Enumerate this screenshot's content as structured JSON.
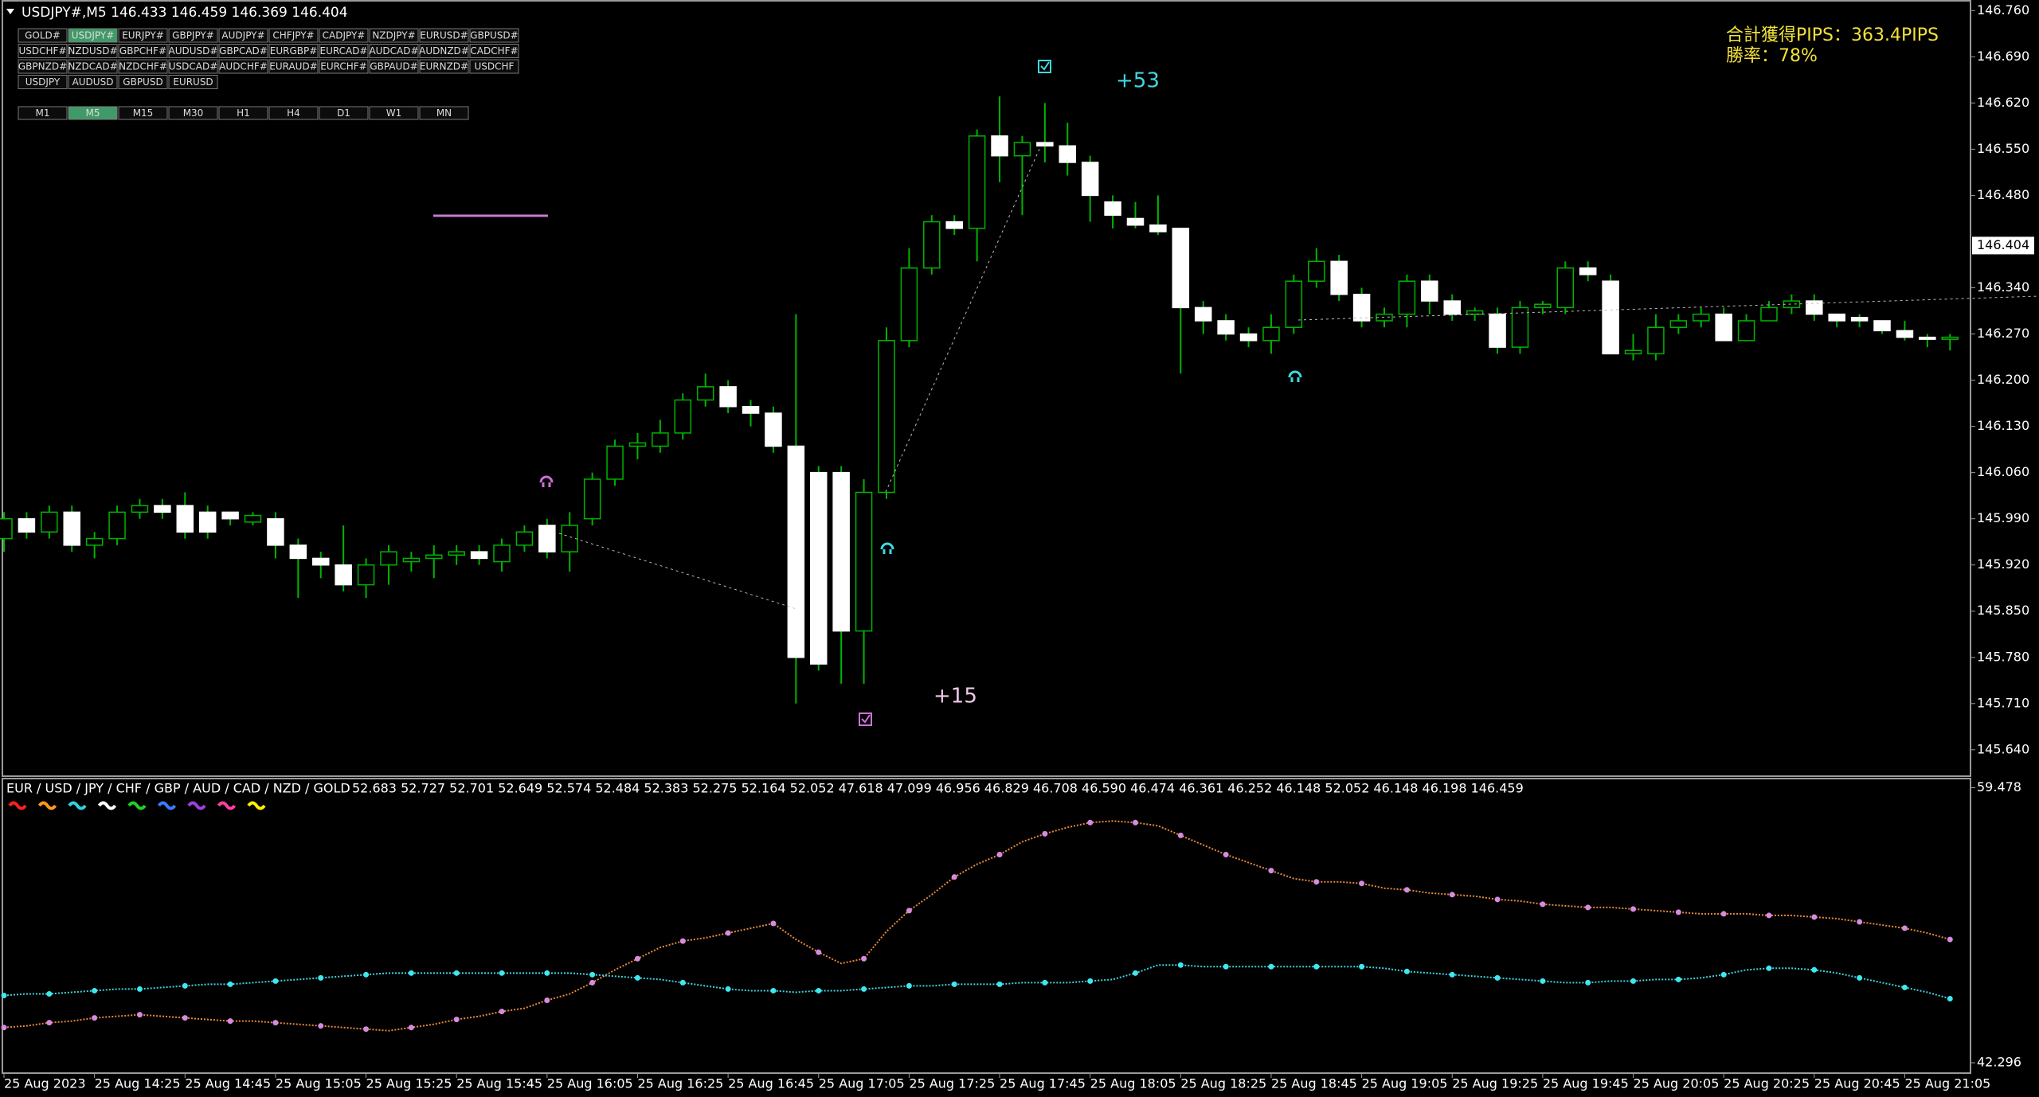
{
  "symbols": {
    "rows": [
      [
        "GOLD#",
        "USDJPY#",
        "EURJPY#",
        "GBPJPY#",
        "AUDJPY#",
        "CHFJPY#",
        "CADJPY#",
        "NZDJPY#",
        "EURUSD#",
        "GBPUSD#"
      ],
      [
        "USDCHF#",
        "NZDUSD#",
        "GBPCHF#",
        "AUDUSD#",
        "GBPCAD#",
        "EURGBP#",
        "EURCAD#",
        "AUDCAD#",
        "AUDNZD#",
        "CADCHF#"
      ],
      [
        "GBPNZD#",
        "NZDCAD#",
        "NZDCHF#",
        "USDCAD#",
        "AUDCHF#",
        "EURAUD#",
        "EURCHF#",
        "GBPAUD#",
        "EURNZD#",
        "USDCHF"
      ],
      [
        "USDJPY",
        "AUDUSD",
        "GBPUSD",
        "EURUSD"
      ]
    ],
    "active_row": 0,
    "active_col": 1
  },
  "timeframes": {
    "items": [
      "M1",
      "M5",
      "M15",
      "M30",
      "H1",
      "H4",
      "D1",
      "W1",
      "MN"
    ],
    "active": 1
  },
  "stats": {
    "total_pips": "合計獲得PIPS：363.4PIPS",
    "win_rate": "勝率：78%"
  },
  "chart_data": [
    {
      "type": "candlestick",
      "title": "USDJPY#,M5  146.433 146.459 146.369 146.404",
      "annotations": [
        "+53",
        "+15"
      ],
      "categories": [
        "25 Aug 2023",
        null,
        null,
        null,
        "25 Aug 14:25",
        null,
        null,
        null,
        "25 Aug 14:45",
        null,
        null,
        null,
        "25 Aug 15:05",
        null,
        null,
        null,
        "25 Aug 15:25",
        null,
        null,
        null,
        "25 Aug 15:45",
        null,
        null,
        null,
        "25 Aug 16:05",
        null,
        null,
        null,
        "25 Aug 16:25",
        null,
        null,
        null,
        "25 Aug 16:45",
        null,
        null,
        null,
        "25 Aug 17:05",
        null,
        null,
        null,
        "25 Aug 17:25",
        null,
        null,
        null,
        "25 Aug 17:45",
        null,
        null,
        null,
        "25 Aug 18:05",
        null,
        null,
        null,
        "25 Aug 18:25",
        null,
        null,
        null,
        "25 Aug 18:45",
        null,
        null,
        null,
        "25 Aug 19:05",
        null,
        null,
        null,
        "25 Aug 19:25",
        null,
        null,
        null,
        "25 Aug 19:45",
        null,
        null,
        null,
        "25 Aug 20:05",
        null,
        null,
        null,
        "25 Aug 20:25",
        null,
        null,
        null,
        "25 Aug 20:45",
        null,
        null,
        null,
        "25 Aug 21:05",
        null,
        null
      ],
      "open": [
        145.96,
        145.99,
        145.97,
        146.0,
        145.95,
        145.96,
        146.0,
        146.01,
        146.01,
        146.0,
        146.0,
        145.985,
        145.99,
        145.95,
        145.93,
        145.92,
        145.89,
        145.92,
        145.925,
        145.93,
        145.935,
        145.94,
        145.925,
        145.95,
        145.98,
        145.94,
        145.99,
        146.05,
        146.1,
        146.1,
        146.12,
        146.17,
        146.19,
        146.16,
        146.15,
        146.1,
        146.06,
        146.06,
        145.82,
        146.03,
        146.26,
        146.37,
        146.44,
        146.43,
        146.57,
        146.54,
        146.56,
        146.555,
        146.53,
        146.47,
        146.445,
        146.435,
        146.43,
        146.31,
        146.29,
        146.27,
        146.26,
        146.28,
        146.35,
        146.38,
        146.33,
        146.29,
        146.3,
        146.35,
        146.32,
        146.3,
        146.3,
        146.25,
        146.31,
        146.31,
        146.37,
        146.35,
        146.24,
        146.24,
        146.28,
        146.29,
        146.3,
        146.26,
        146.29,
        146.31,
        146.32,
        146.3,
        146.295,
        146.29,
        146.275,
        146.265,
        146.262
      ],
      "high": [
        146.0,
        146.0,
        146.01,
        146.01,
        145.97,
        146.01,
        146.02,
        146.02,
        146.03,
        146.01,
        146.0,
        146.0,
        146.0,
        145.96,
        145.94,
        145.98,
        145.93,
        145.95,
        145.94,
        145.95,
        145.95,
        145.95,
        145.96,
        145.98,
        145.99,
        146.0,
        146.06,
        146.11,
        146.12,
        146.14,
        146.18,
        146.21,
        146.2,
        146.17,
        146.16,
        146.3,
        146.07,
        146.07,
        146.05,
        146.28,
        146.4,
        146.45,
        146.45,
        146.58,
        146.63,
        146.57,
        146.62,
        146.59,
        146.54,
        146.48,
        146.47,
        146.48,
        146.43,
        146.32,
        146.3,
        146.28,
        146.3,
        146.36,
        146.4,
        146.39,
        146.34,
        146.31,
        146.36,
        146.36,
        146.33,
        146.31,
        146.31,
        146.32,
        146.32,
        146.38,
        146.38,
        146.36,
        146.27,
        146.3,
        146.3,
        146.31,
        146.31,
        146.3,
        146.32,
        146.33,
        146.33,
        146.3,
        146.3,
        146.29,
        146.29,
        146.27,
        146.27
      ],
      "low": [
        145.94,
        145.96,
        145.96,
        145.94,
        145.93,
        145.95,
        145.99,
        145.99,
        145.96,
        145.96,
        145.98,
        145.98,
        145.93,
        145.87,
        145.9,
        145.88,
        145.87,
        145.89,
        145.91,
        145.9,
        145.92,
        145.92,
        145.91,
        145.94,
        145.93,
        145.91,
        145.98,
        146.04,
        146.08,
        146.09,
        146.11,
        146.16,
        146.15,
        146.13,
        146.09,
        145.71,
        145.76,
        145.74,
        145.74,
        146.02,
        146.25,
        146.36,
        146.42,
        146.38,
        146.5,
        146.45,
        146.53,
        146.51,
        146.44,
        146.43,
        146.43,
        146.42,
        146.21,
        146.27,
        146.26,
        146.25,
        146.24,
        146.27,
        146.34,
        146.32,
        146.28,
        146.28,
        146.28,
        146.3,
        146.29,
        146.29,
        146.24,
        146.24,
        146.3,
        146.3,
        146.35,
        146.24,
        146.23,
        146.23,
        146.27,
        146.28,
        146.26,
        146.26,
        146.29,
        146.3,
        146.29,
        146.28,
        146.28,
        146.27,
        146.26,
        146.25,
        146.245
      ],
      "close": [
        145.99,
        145.97,
        146.0,
        145.95,
        145.96,
        146.0,
        146.01,
        146.0,
        145.97,
        145.97,
        145.99,
        145.995,
        145.95,
        145.93,
        145.92,
        145.89,
        145.92,
        145.94,
        145.93,
        145.935,
        145.94,
        145.93,
        145.95,
        145.97,
        145.94,
        145.98,
        146.05,
        146.1,
        146.105,
        146.12,
        146.17,
        146.19,
        146.16,
        146.15,
        146.1,
        145.78,
        145.77,
        145.82,
        146.03,
        146.26,
        146.37,
        146.44,
        146.43,
        146.57,
        146.54,
        146.56,
        146.555,
        146.53,
        146.48,
        146.45,
        146.435,
        146.425,
        146.31,
        146.29,
        146.27,
        146.26,
        146.28,
        146.35,
        146.38,
        146.33,
        146.29,
        146.3,
        146.35,
        146.32,
        146.3,
        146.305,
        146.25,
        146.31,
        146.315,
        146.37,
        146.36,
        146.24,
        146.245,
        146.28,
        146.29,
        146.3,
        146.26,
        146.29,
        146.31,
        146.32,
        146.3,
        146.29,
        146.29,
        146.275,
        146.265,
        146.262,
        146.265
      ],
      "bull_color": "#00b400",
      "bear_color": "#ffffff",
      "current_price": {
        "value": 146.404,
        "label": "146.404"
      },
      "ylim": [
        145.6,
        146.77
      ],
      "yticks": [
        {
          "value": 146.76,
          "label": "146.760"
        },
        {
          "value": 146.69,
          "label": "146.690"
        },
        {
          "value": 146.62,
          "label": "146.620"
        },
        {
          "value": 146.55,
          "label": "146.550"
        },
        {
          "value": 146.48,
          "label": "146.480"
        },
        {
          "value": 146.34,
          "label": "146.340"
        },
        {
          "value": 146.27,
          "label": "146.270"
        },
        {
          "value": 146.2,
          "label": "146.200"
        },
        {
          "value": 146.13,
          "label": "146.130"
        },
        {
          "value": 146.06,
          "label": "146.060"
        },
        {
          "value": 145.99,
          "label": "145.990"
        },
        {
          "value": 145.92,
          "label": "145.920"
        },
        {
          "value": 145.85,
          "label": "145.850"
        },
        {
          "value": 145.78,
          "label": "145.780"
        },
        {
          "value": 145.71,
          "label": "145.710"
        },
        {
          "value": 145.64,
          "label": "145.640"
        }
      ]
    },
    {
      "type": "line",
      "title": "EUR / USD / JPY / CHF / GBP / AUD / CAD / NZD / GOLD",
      "subtitle": "52.683 52.727 52.701 52.649 52.574 52.484 52.383 52.275 52.164 52.052 47.618 47.099 46.956 46.829 46.708 46.590 46.474 46.361 46.252 46.148 52.052 46.148 46.198 146.459",
      "legend_colors": [
        "#ff2020",
        "#ff9a1a",
        "#2fd3e0",
        "#ffffff",
        "#22d022",
        "#3a7cff",
        "#a040e0",
        "#ff3fa0",
        "#ffee00"
      ],
      "series": [
        {
          "color": "#e8893a",
          "marker_color": "#d68be0",
          "values": [
            44.5,
            44.6,
            44.8,
            44.9,
            45.1,
            45.2,
            45.3,
            45.2,
            45.1,
            45.0,
            44.9,
            44.9,
            44.8,
            44.7,
            44.6,
            44.5,
            44.4,
            44.3,
            44.5,
            44.7,
            45.0,
            45.2,
            45.5,
            45.7,
            46.2,
            46.6,
            47.3,
            48.1,
            48.8,
            49.5,
            49.9,
            50.1,
            50.4,
            50.7,
            51.0,
            50.0,
            49.2,
            48.5,
            48.8,
            50.5,
            51.8,
            52.8,
            53.9,
            54.7,
            55.3,
            56.1,
            56.6,
            57.0,
            57.3,
            57.4,
            57.3,
            57.1,
            56.5,
            55.9,
            55.3,
            54.8,
            54.3,
            53.8,
            53.6,
            53.6,
            53.5,
            53.2,
            53.1,
            52.9,
            52.8,
            52.7,
            52.5,
            52.4,
            52.2,
            52.1,
            52.0,
            52.0,
            51.9,
            51.8,
            51.7,
            51.6,
            51.6,
            51.6,
            51.5,
            51.5,
            51.4,
            51.3,
            51.1,
            50.9,
            50.7,
            50.4,
            50.0
          ]
        },
        {
          "color": "#3fd3dc",
          "marker_color": "#3fe8f0",
          "values": [
            46.5,
            46.6,
            46.6,
            46.7,
            46.8,
            46.9,
            46.9,
            47.0,
            47.1,
            47.2,
            47.2,
            47.3,
            47.4,
            47.5,
            47.6,
            47.7,
            47.8,
            47.9,
            47.9,
            47.9,
            47.9,
            47.9,
            47.9,
            47.9,
            47.9,
            47.9,
            47.8,
            47.7,
            47.6,
            47.5,
            47.3,
            47.1,
            46.9,
            46.8,
            46.8,
            46.7,
            46.8,
            46.8,
            46.9,
            47.0,
            47.1,
            47.1,
            47.2,
            47.2,
            47.2,
            47.3,
            47.3,
            47.3,
            47.4,
            47.5,
            47.9,
            48.4,
            48.4,
            48.3,
            48.3,
            48.3,
            48.3,
            48.3,
            48.3,
            48.3,
            48.3,
            48.2,
            48.0,
            47.9,
            47.8,
            47.7,
            47.6,
            47.5,
            47.4,
            47.3,
            47.3,
            47.4,
            47.4,
            47.5,
            47.5,
            47.6,
            47.8,
            48.1,
            48.2,
            48.2,
            48.1,
            47.9,
            47.6,
            47.3,
            47.0,
            46.7,
            46.3
          ]
        }
      ],
      "ylim": [
        41.65,
        60.05
      ],
      "yticks": [
        59.478,
        42.296
      ]
    }
  ]
}
